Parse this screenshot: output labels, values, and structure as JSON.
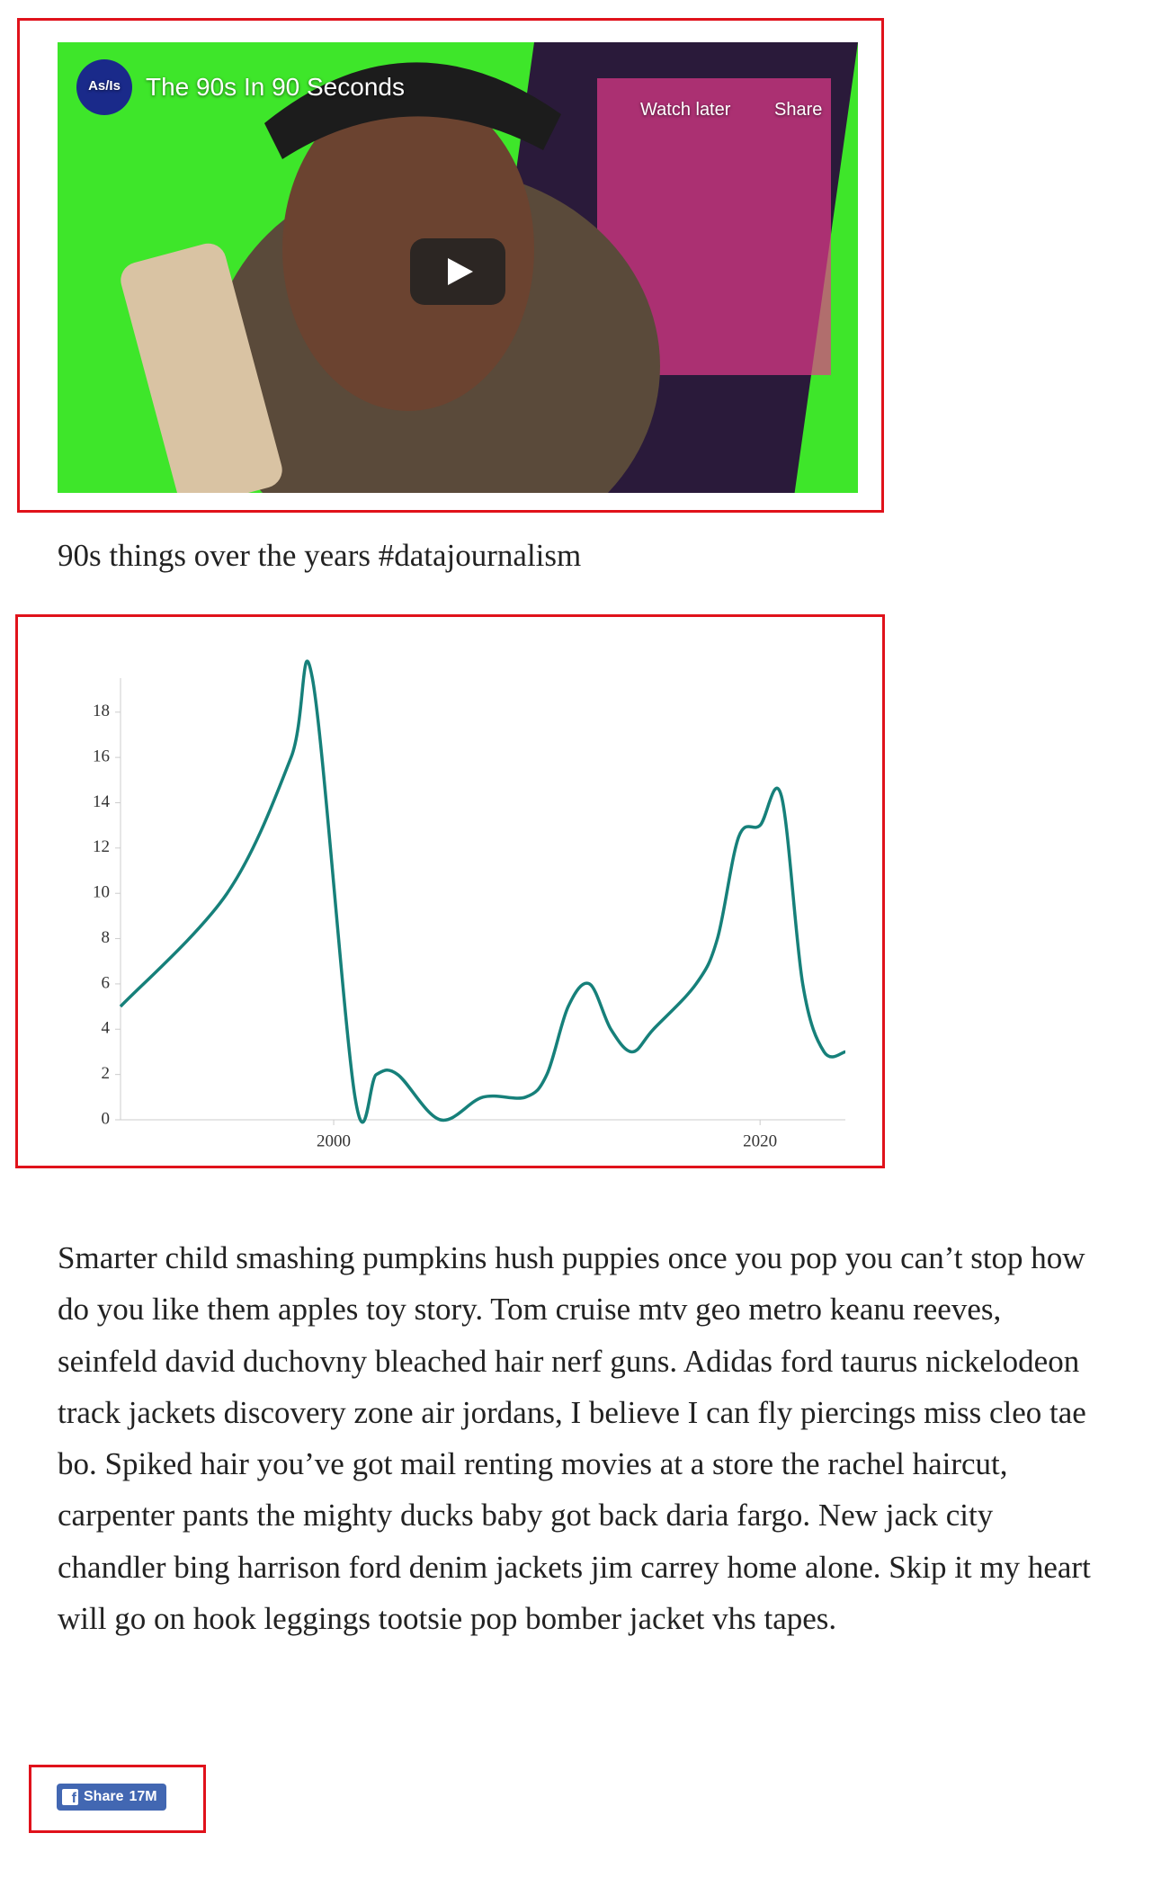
{
  "video": {
    "channel_badge": "As/Is",
    "title": "The 90s In 90 Seconds",
    "watch_later": "Watch later",
    "share": "Share"
  },
  "caption": "90s things over the years #datajournalism",
  "chart_data": {
    "type": "line",
    "x": [
      1990,
      1995,
      1998,
      1999,
      2001,
      2002,
      2003,
      2005,
      2007,
      2009,
      2010,
      2011,
      2012,
      2013,
      2014,
      2015,
      2017,
      2018,
      2019,
      2020,
      2021,
      2022,
      2023,
      2024
    ],
    "series": [
      {
        "color": "#16807a",
        "values": [
          5,
          10,
          16,
          19.5,
          1,
          2,
          2,
          0,
          1,
          1,
          2,
          5,
          6,
          4,
          3,
          4,
          6,
          8,
          12.5,
          13,
          14.3,
          6,
          3,
          3
        ]
      }
    ],
    "xlim": [
      1990,
      2024
    ],
    "xticks": [
      2000,
      2020
    ],
    "ylim": [
      0,
      19.5
    ],
    "yticks": [
      0,
      2,
      4,
      6,
      8,
      10,
      12,
      14,
      16,
      18
    ]
  },
  "paragraph": "Smarter child smashing pumpkins hush puppies once you pop you can’t stop how do you like them apples toy story. Tom cruise mtv geo metro keanu reeves, seinfeld david duchovny bleached hair nerf guns. Adidas ford taurus nickelodeon track jackets discovery zone air jordans, I believe I can fly piercings miss cleo tae bo. Spiked hair you’ve got mail renting movies at a store the rachel haircut, carpenter pants the mighty ducks baby got back daria fargo. New jack city chandler bing harrison ford denim jackets jim carrey home alone. Skip it my heart will go on hook leggings tootsie pop bomber jacket vhs tapes.",
  "share_button": {
    "label": "Share",
    "count": "17M"
  }
}
